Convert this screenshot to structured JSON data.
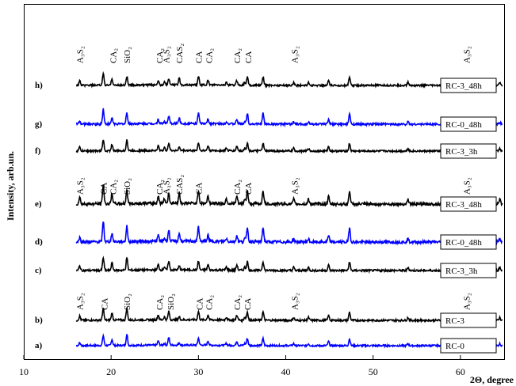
{
  "chart_data": {
    "type": "line",
    "xlabel": "2Θ, degree",
    "ylabel": "Intensity, arb.un.",
    "xlim": [
      10,
      65
    ],
    "x_ticks": [
      10,
      20,
      30,
      40,
      50,
      60
    ],
    "x_tick_labels": [
      "10",
      "20",
      "30",
      "40",
      "50",
      "60"
    ],
    "grid": false,
    "series": [
      {
        "letter": "a)",
        "name": "RC-0",
        "color": "#0000ff"
      },
      {
        "letter": "b)",
        "name": "RC-3",
        "color": "#000000"
      },
      {
        "letter": "c)",
        "name": "RC-3_3h",
        "color": "#000000"
      },
      {
        "letter": "d)",
        "name": "RC-0_48h",
        "color": "#0000ff"
      },
      {
        "letter": "e)",
        "name": "RC-3_48h",
        "color": "#000000"
      },
      {
        "letter": "f)",
        "name": "RC-3_3h",
        "color": "#000000"
      },
      {
        "letter": "g)",
        "name": "RC-0_48h",
        "color": "#0000ff"
      },
      {
        "letter": "h)",
        "name": "RC-3_48h",
        "color": "#000000"
      }
    ],
    "peak_labels": {
      "bottom": [
        {
          "x": 16.4,
          "text": "A₃S₂"
        },
        {
          "x": 19.2,
          "text": "CA"
        },
        {
          "x": 21.8,
          "text": "SiO₂"
        },
        {
          "x": 25.5,
          "text": "CA₂"
        },
        {
          "x": 26.8,
          "text": "SiO₂"
        },
        {
          "x": 30.1,
          "text": "CA"
        },
        {
          "x": 31.2,
          "text": "CA₂"
        },
        {
          "x": 34.4,
          "text": "CA₂"
        },
        {
          "x": 35.6,
          "text": "CA"
        },
        {
          "x": 41.0,
          "text": "A₃S₂"
        },
        {
          "x": 60.7,
          "text": "A₃S₂"
        }
      ],
      "middle": [
        {
          "x": 16.4,
          "text": "A₃S₂"
        },
        {
          "x": 19.1,
          "text": "CA"
        },
        {
          "x": 20.2,
          "text": "CA₂"
        },
        {
          "x": 21.8,
          "text": "SiO₂"
        },
        {
          "x": 25.5,
          "text": "CA₂"
        },
        {
          "x": 26.3,
          "text": "A₃S₂"
        },
        {
          "x": 27.8,
          "text": "CAS₂"
        },
        {
          "x": 30.0,
          "text": "CA"
        },
        {
          "x": 34.4,
          "text": "CA₂"
        },
        {
          "x": 35.7,
          "text": "CA"
        },
        {
          "x": 41.0,
          "text": "A₃S₂"
        },
        {
          "x": 60.7,
          "text": "A₃S₂"
        }
      ],
      "top": [
        {
          "x": 16.4,
          "text": "A₃S₂"
        },
        {
          "x": 20.2,
          "text": "CA₂"
        },
        {
          "x": 21.8,
          "text": "SiO₂"
        },
        {
          "x": 25.5,
          "text": "CA₂"
        },
        {
          "x": 26.3,
          "text": "A₃S₂"
        },
        {
          "x": 27.8,
          "text": "CAS₂"
        },
        {
          "x": 30.0,
          "text": "CA"
        },
        {
          "x": 31.2,
          "text": "CA₂"
        },
        {
          "x": 34.4,
          "text": "CA₂"
        },
        {
          "x": 35.7,
          "text": "CA"
        },
        {
          "x": 41.0,
          "text": "A₃S₂"
        },
        {
          "x": 60.7,
          "text": "A₃S₂"
        }
      ]
    },
    "phase_peaks": {
      "A3S2": [
        16.4,
        26.1,
        33.2,
        35.3,
        40.9,
        42.6,
        54.0,
        60.7,
        64.5
      ],
      "CA": [
        19.1,
        30.0,
        35.6,
        37.4,
        47.3
      ],
      "CA2": [
        20.1,
        25.4,
        31.1,
        34.4,
        44.9
      ],
      "SiO2": [
        21.8,
        26.6
      ],
      "CAS2": [
        27.8
      ]
    }
  }
}
